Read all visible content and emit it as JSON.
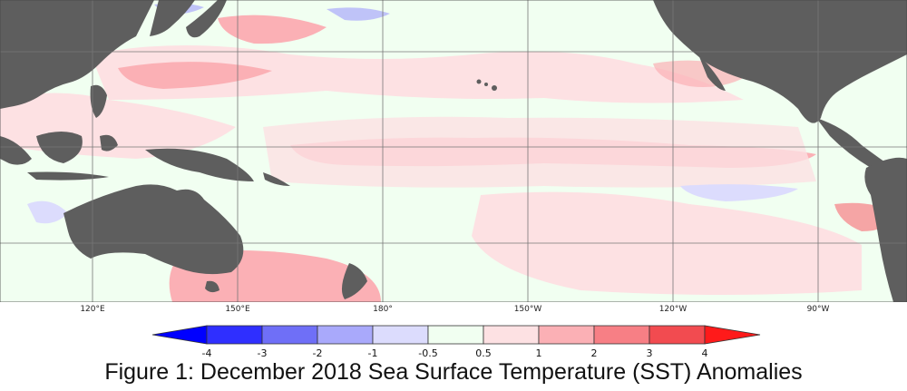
{
  "caption": "Figure 1: December 2018 Sea Surface Temperature (SST) Anomalies",
  "map": {
    "longitude_labels": [
      "120°E",
      "150°E",
      "180°",
      "150°W",
      "120°W",
      "90°W"
    ],
    "land_color": "#5e5e5e",
    "ocean_base_color": "#f1fff1",
    "grid_color": "#777777"
  },
  "legend": {
    "tick_labels": [
      "-4",
      "-3",
      "-2",
      "-1",
      "-0.5",
      "0.5",
      "1",
      "2",
      "3",
      "4"
    ],
    "min_arrow_color": "#0000ff",
    "max_arrow_color": "#ff1a1a",
    "bins": [
      {
        "range": "-4 to -3",
        "color": "#2f2fff"
      },
      {
        "range": "-3 to -2",
        "color": "#6f6ff7"
      },
      {
        "range": "-2 to -1",
        "color": "#a9a9fb"
      },
      {
        "range": "-1 to -0.5",
        "color": "#dcdcfd"
      },
      {
        "range": "-0.5 to 0.5",
        "color": "#f1fff1"
      },
      {
        "range": "0.5 to 1",
        "color": "#fde1e3"
      },
      {
        "range": "1 to 2",
        "color": "#fbb0b5"
      },
      {
        "range": "2 to 3",
        "color": "#f77f85"
      },
      {
        "range": "3 to 4",
        "color": "#f24b50"
      }
    ]
  }
}
